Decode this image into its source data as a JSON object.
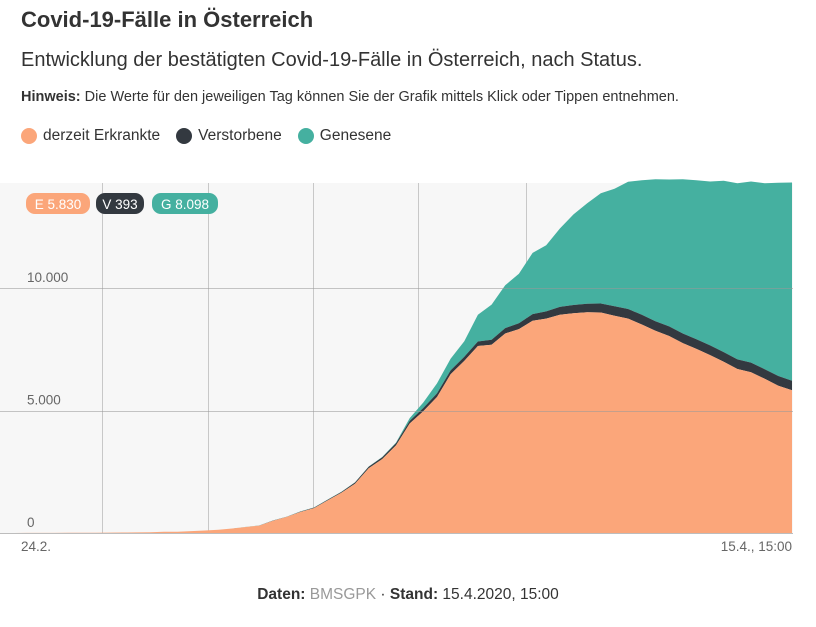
{
  "header": {
    "title": "Covid-19-Fälle in Österreich",
    "subtitle": "Entwicklung der bestätigten Covid-19-Fälle in Österreich, nach Status.",
    "note_label": "Hinweis:",
    "note_text": " Die Werte für den jeweiligen Tag können Sie der Grafik mittels Klick oder Tippen entnehmen."
  },
  "footer": {
    "data_label": "Daten:",
    "data_source": "BMSGPK",
    "separator": "·",
    "stand_label": "Stand:",
    "stand_value": "15.4.2020, 15:00"
  },
  "colors": {
    "erkrankte": "#fba67a",
    "verstorbene": "#333940",
    "genesene": "#45b0a0",
    "plot_bg": "#f7f7f7",
    "grid": "#c8c8c8"
  },
  "chart_data": {
    "type": "area",
    "stacked": true,
    "title": "Covid-19-Fälle in Österreich",
    "x_start_label": "24.2.",
    "x_end_label": "15.4., 15:00",
    "ylim": [
      0,
      14300
    ],
    "yticks": [
      {
        "value": 0,
        "label": "0"
      },
      {
        "value": 5000,
        "label": "5.000"
      },
      {
        "value": 10000,
        "label": "10.000"
      }
    ],
    "legend": [
      {
        "key": "E",
        "name": "derzeit Erkrankte",
        "color": "#fba67a"
      },
      {
        "key": "V",
        "name": "Verstorbene",
        "color": "#333940"
      },
      {
        "key": "G",
        "name": "Genesene",
        "color": "#45b0a0"
      }
    ],
    "latest_badges": [
      {
        "key": "E",
        "text": "E 5.830",
        "value": 5830,
        "color": "#fba67a"
      },
      {
        "key": "V",
        "text": "V 393",
        "value": 393,
        "color": "#333940"
      },
      {
        "key": "G",
        "text": "G 8.098",
        "value": 8098,
        "color": "#45b0a0"
      }
    ],
    "series": [
      {
        "name": "derzeit Erkrankte",
        "color": "#fba67a",
        "values": [
          2,
          2,
          3,
          5,
          5,
          9,
          10,
          14,
          18,
          21,
          24,
          29,
          47,
          55,
          79,
          102,
          131,
          182,
          246,
          302,
          504,
          656,
          860,
          1016,
          1332,
          1646,
          2013,
          2649,
          3024,
          3580,
          4474,
          4978,
          5556,
          6486,
          7030,
          7640,
          7690,
          8150,
          8330,
          8670,
          8760,
          8920,
          8980,
          9020,
          9010,
          8880,
          8760,
          8520,
          8260,
          8050,
          7760,
          7520,
          7270,
          7000,
          6700,
          6570,
          6300,
          6020,
          5830
        ]
      },
      {
        "name": "Verstorbene",
        "color": "#333940",
        "values": [
          0,
          0,
          0,
          0,
          0,
          0,
          0,
          0,
          0,
          0,
          0,
          0,
          0,
          0,
          0,
          0,
          0,
          0,
          1,
          3,
          6,
          8,
          16,
          21,
          28,
          30,
          49,
          58,
          68,
          86,
          108,
          128,
          146,
          158,
          168,
          186,
          204,
          220,
          243,
          273,
          295,
          319,
          337,
          350,
          368,
          384,
          393,
          393,
          393,
          393,
          393,
          393,
          393,
          393,
          393,
          393,
          393,
          393,
          393
        ]
      },
      {
        "name": "Genesene",
        "color": "#45b0a0",
        "values": [
          0,
          0,
          0,
          0,
          0,
          0,
          0,
          0,
          0,
          0,
          0,
          0,
          0,
          0,
          0,
          0,
          0,
          0,
          2,
          4,
          6,
          6,
          6,
          8,
          9,
          9,
          9,
          12,
          16,
          28,
          113,
          225,
          410,
          479,
          636,
          1095,
          1436,
          1750,
          2022,
          2500,
          2700,
          3200,
          3700,
          4100,
          4500,
          4800,
          5200,
          5500,
          5800,
          6000,
          6300,
          6500,
          6700,
          7000,
          7200,
          7400,
          7600,
          7900,
          8098
        ]
      }
    ]
  }
}
